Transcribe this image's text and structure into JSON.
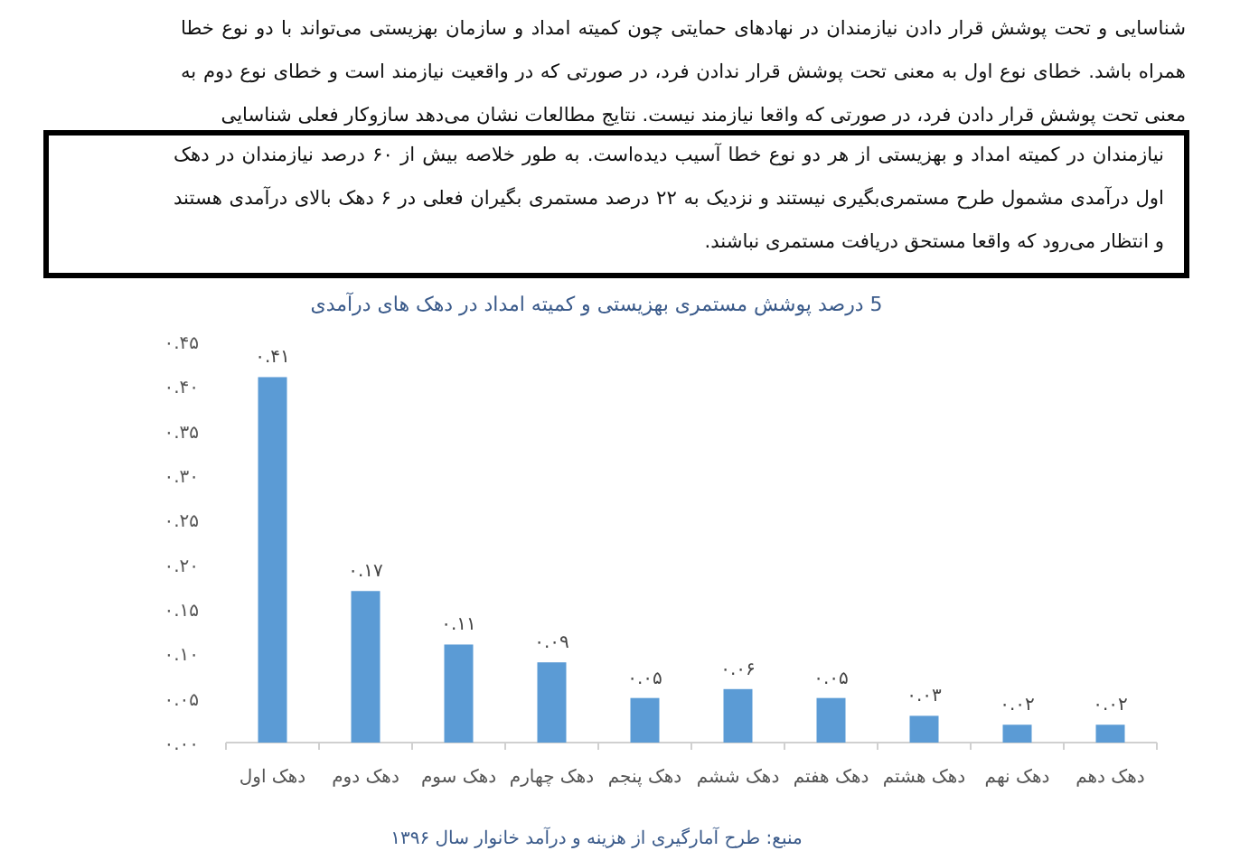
{
  "chart_data": {
    "type": "bar",
    "title": "5 درصد پوشش مستمری بهزیستی و کمیته امداد در دهک های درآمدی",
    "annotations": [
      "شناسایی و تحت پوشش قرار دادن نیازمندان در نهادهای حمایتی چون کمیته امداد و سازمان بهزیستی می‌تواند با دو نوع خطا همراه باشد. خطای نوع اول به معنی تحت پوشش قرار ندادن فرد، در صورتی که در واقعیت نیازمند است و خطای نوع دوم به معنی تحت پوشش قرار دادن فرد، در صورتی که واقعا نیازمند نیست. نتایج مطالعات نشان می‌دهد سازوکار فعلی شناسایی",
      "نیازمندان در کمیته امداد و بهزیستی از هر دو نوع خطا آسیب دیده‌است. به طور خلاصه بیش از ۶۰ درصد نیازمندان در دهک اول درآمدی مشمول طرح مستمری‌بگیری نیستند و نزدیک به ۲۲ درصد مستمری بگیران فعلی در ۶ دهک بالای درآمدی هستند و انتظار می‌رود که واقعا مستحق دریافت مستمری نباشند.",
      "منبع: طرح آمارگیری از هزینه و درآمد خانوار سال ۱۳۹۶"
    ],
    "categories": [
      "دهک اول",
      "دهک دوم",
      "دهک سوم",
      "دهک چهارم",
      "دهک پنجم",
      "دهک ششم",
      "دهک هفتم",
      "دهک هشتم",
      "دهک نهم",
      "دهک دهم"
    ],
    "values": [
      0.41,
      0.17,
      0.11,
      0.09,
      0.05,
      0.06,
      0.05,
      0.03,
      0.02,
      0.02
    ],
    "value_labels": [
      "۰.۴۱",
      "۰.۱۷",
      "۰.۱۱",
      "۰.۰۹",
      "۰.۰۵",
      "۰.۰۶",
      "۰.۰۵",
      "۰.۰۳",
      "۰.۰۲",
      "۰.۰۲"
    ],
    "color": "#5b9bd5",
    "ylim": [
      0,
      0.45
    ],
    "yticks": [
      {
        "value": 0,
        "label": "۰.۰۰"
      },
      {
        "value": 0.05,
        "label": "۰.۰۵"
      },
      {
        "value": 0.1,
        "label": "۰.۱۰"
      },
      {
        "value": 0.15,
        "label": "۰.۱۵"
      },
      {
        "value": 0.2,
        "label": "۰.۲۰"
      },
      {
        "value": 0.25,
        "label": "۰.۲۵"
      },
      {
        "value": 0.3,
        "label": "۰.۳۰"
      },
      {
        "value": 0.35,
        "label": "۰.۳۵"
      },
      {
        "value": 0.4,
        "label": "۰.۴۰"
      },
      {
        "value": 0.45,
        "label": "۰.۴۵"
      }
    ],
    "grid": false
  }
}
